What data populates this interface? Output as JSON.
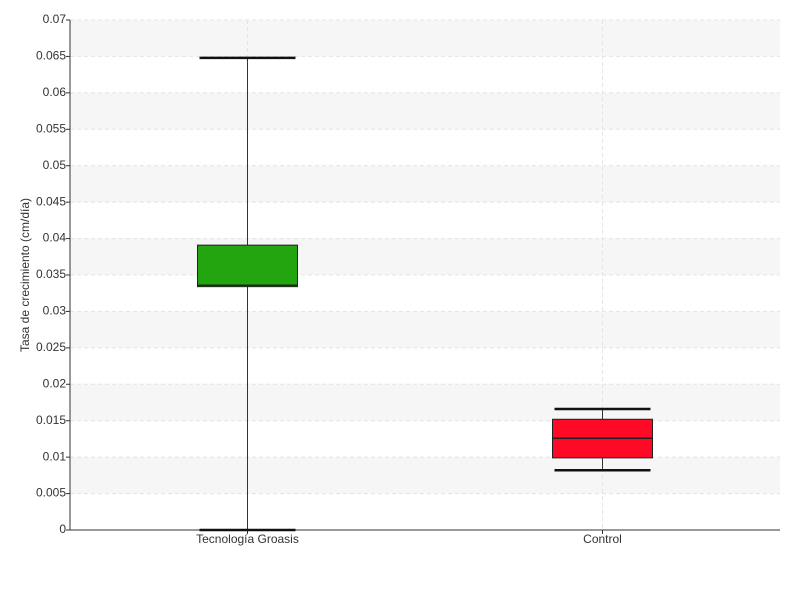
{
  "chart_data": {
    "type": "box",
    "y_label": "Tasa de crecimiento (cm/día)",
    "categories": [
      "Tecnología Groasis",
      "Control"
    ],
    "boxes": [
      {
        "min": 0,
        "q1": 0.0334,
        "median": 0.0336,
        "q3": 0.0391,
        "max": 0.0648,
        "color": "#22a50e"
      },
      {
        "min": 0.0082,
        "q1": 0.0099,
        "median": 0.0126,
        "q3": 0.0152,
        "max": 0.0166,
        "color": "#ff0a26"
      }
    ],
    "ylim": [
      0,
      0.07
    ],
    "yticks": [
      0,
      0.005,
      0.01,
      0.015,
      0.02,
      0.025,
      0.03,
      0.035,
      0.04,
      0.045,
      0.05,
      0.055,
      0.06,
      0.065,
      0.07
    ],
    "grid": true
  }
}
